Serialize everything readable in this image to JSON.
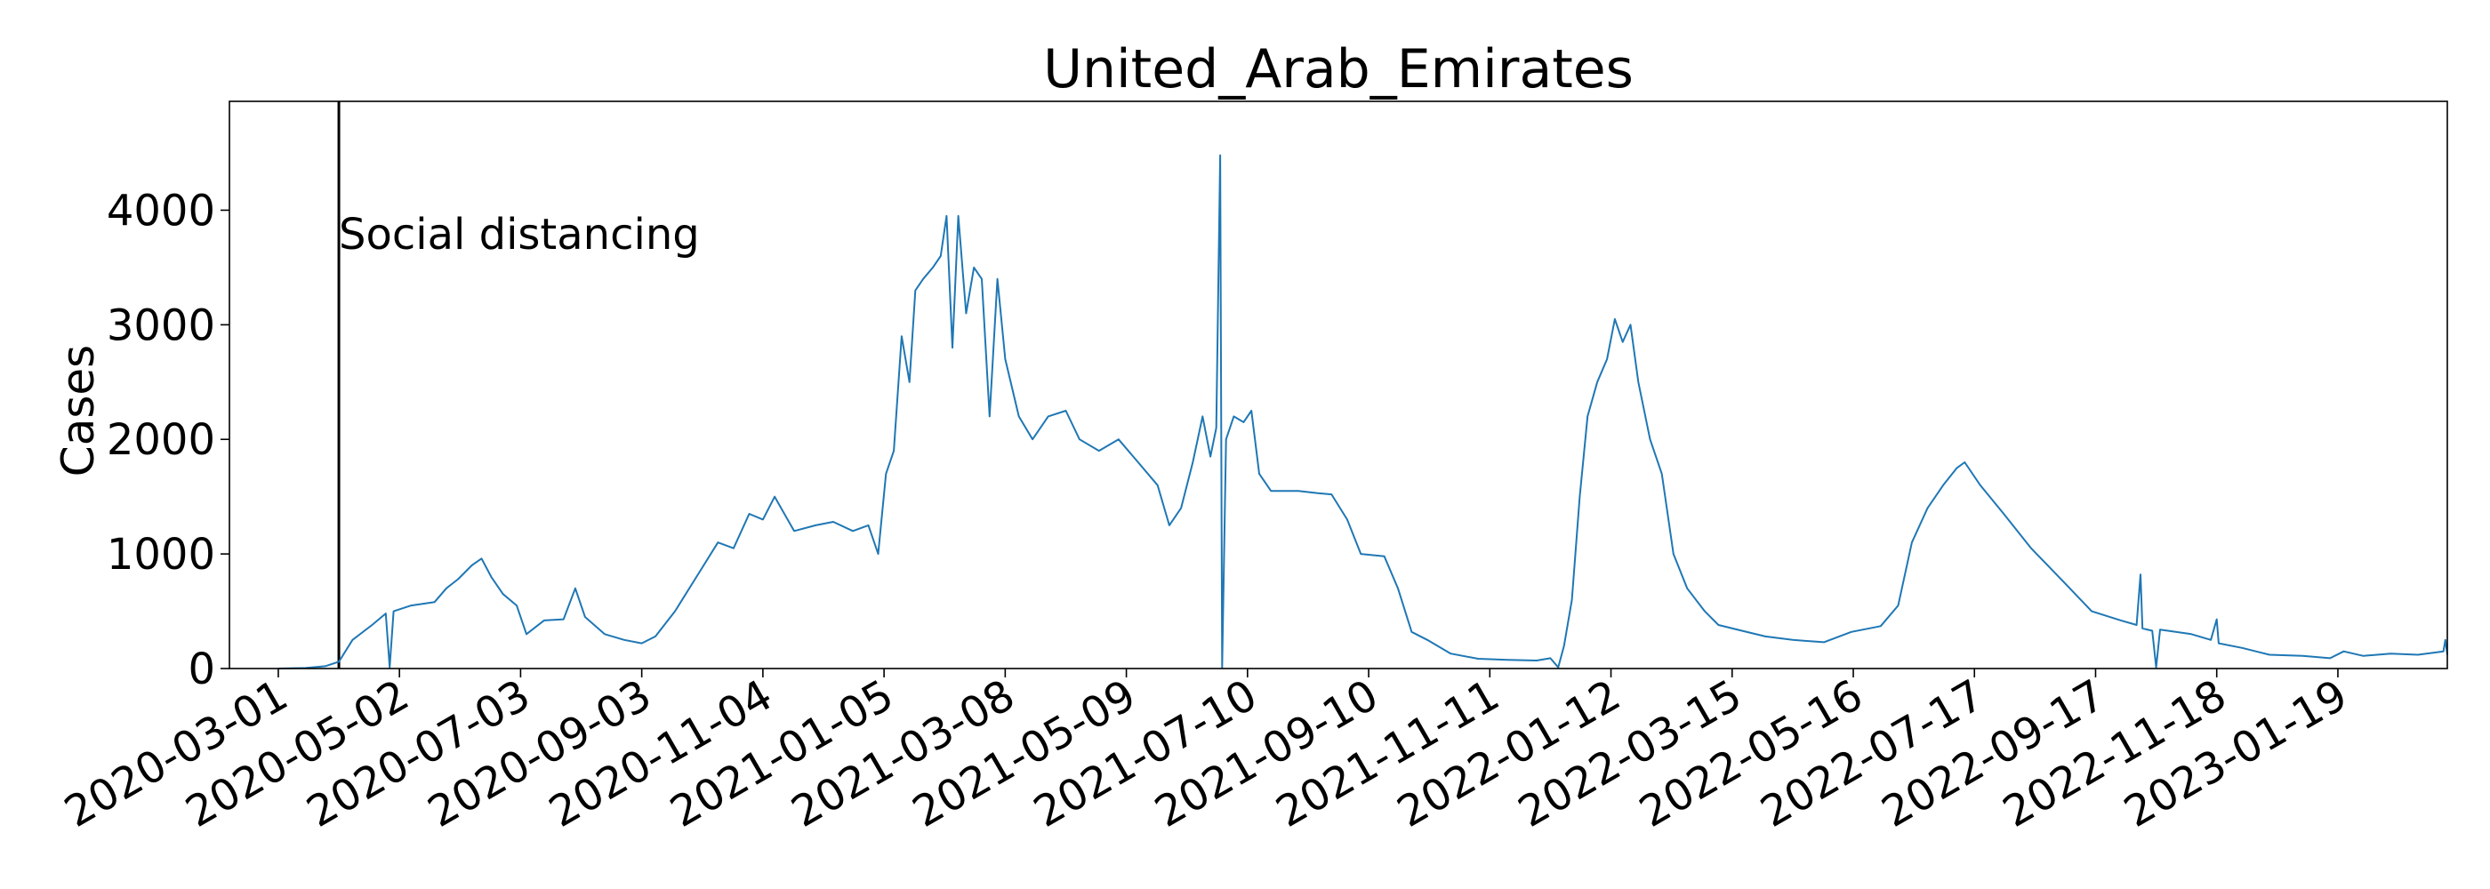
{
  "chart_data": {
    "type": "line",
    "title": "United_Arab_Emirates",
    "xlabel": "",
    "ylabel": "Cases",
    "ylim": [
      0,
      4950
    ],
    "xlim": [
      "2020-02-05",
      "2023-03-16"
    ],
    "grid": false,
    "legend": "none",
    "y_ticks": [
      0,
      1000,
      2000,
      3000,
      4000
    ],
    "x_ticks": [
      "2020-03-01",
      "2020-05-02",
      "2020-07-03",
      "2020-09-03",
      "2020-11-04",
      "2021-01-05",
      "2021-03-08",
      "2021-05-09",
      "2021-07-10",
      "2021-09-10",
      "2021-11-11",
      "2022-01-12",
      "2022-03-15",
      "2022-05-16",
      "2022-07-17",
      "2022-09-17",
      "2022-11-18",
      "2023-01-19"
    ],
    "annotations": [
      {
        "label": "Social distancing",
        "date": "2020-04-01"
      }
    ],
    "series": [
      {
        "color": "#1f77b4",
        "points": [
          [
            "2020-03-01",
            0
          ],
          [
            "2020-03-15",
            5
          ],
          [
            "2020-03-25",
            20
          ],
          [
            "2020-04-01",
            60
          ],
          [
            "2020-04-08",
            250
          ],
          [
            "2020-04-18",
            380
          ],
          [
            "2020-04-25",
            480
          ],
          [
            "2020-04-27",
            10
          ],
          [
            "2020-04-29",
            500
          ],
          [
            "2020-05-08",
            550
          ],
          [
            "2020-05-20",
            580
          ],
          [
            "2020-05-26",
            700
          ],
          [
            "2020-06-01",
            780
          ],
          [
            "2020-06-08",
            900
          ],
          [
            "2020-06-13",
            960
          ],
          [
            "2020-06-18",
            800
          ],
          [
            "2020-06-24",
            650
          ],
          [
            "2020-07-01",
            550
          ],
          [
            "2020-07-06",
            300
          ],
          [
            "2020-07-15",
            420
          ],
          [
            "2020-07-25",
            430
          ],
          [
            "2020-07-31",
            700
          ],
          [
            "2020-08-05",
            450
          ],
          [
            "2020-08-15",
            300
          ],
          [
            "2020-08-25",
            250
          ],
          [
            "2020-09-03",
            220
          ],
          [
            "2020-09-10",
            280
          ],
          [
            "2020-09-20",
            500
          ],
          [
            "2020-10-01",
            800
          ],
          [
            "2020-10-12",
            1100
          ],
          [
            "2020-10-20",
            1050
          ],
          [
            "2020-10-28",
            1350
          ],
          [
            "2020-11-04",
            1300
          ],
          [
            "2020-11-10",
            1500
          ],
          [
            "2020-11-20",
            1200
          ],
          [
            "2020-12-01",
            1250
          ],
          [
            "2020-12-10",
            1280
          ],
          [
            "2020-12-20",
            1200
          ],
          [
            "2020-12-28",
            1250
          ],
          [
            "2021-01-02",
            1000
          ],
          [
            "2021-01-06",
            1700
          ],
          [
            "2021-01-10",
            1900
          ],
          [
            "2021-01-14",
            2900
          ],
          [
            "2021-01-18",
            2500
          ],
          [
            "2021-01-21",
            3300
          ],
          [
            "2021-01-25",
            3400
          ],
          [
            "2021-01-30",
            3500
          ],
          [
            "2021-02-03",
            3600
          ],
          [
            "2021-02-06",
            3950
          ],
          [
            "2021-02-09",
            2800
          ],
          [
            "2021-02-12",
            3950
          ],
          [
            "2021-02-16",
            3100
          ],
          [
            "2021-02-20",
            3500
          ],
          [
            "2021-02-24",
            3400
          ],
          [
            "2021-02-28",
            2200
          ],
          [
            "2021-03-04",
            3400
          ],
          [
            "2021-03-08",
            2700
          ],
          [
            "2021-03-15",
            2200
          ],
          [
            "2021-03-22",
            2000
          ],
          [
            "2021-03-30",
            2200
          ],
          [
            "2021-04-08",
            2250
          ],
          [
            "2021-04-15",
            2000
          ],
          [
            "2021-04-25",
            1900
          ],
          [
            "2021-05-05",
            2000
          ],
          [
            "2021-05-15",
            1800
          ],
          [
            "2021-05-25",
            1600
          ],
          [
            "2021-05-31",
            1250
          ],
          [
            "2021-06-06",
            1400
          ],
          [
            "2021-06-12",
            1800
          ],
          [
            "2021-06-17",
            2200
          ],
          [
            "2021-06-21",
            1850
          ],
          [
            "2021-06-24",
            2100
          ],
          [
            "2021-06-26",
            4480
          ],
          [
            "2021-06-27",
            10
          ],
          [
            "2021-06-29",
            2000
          ],
          [
            "2021-07-03",
            2200
          ],
          [
            "2021-07-08",
            2150
          ],
          [
            "2021-07-12",
            2250
          ],
          [
            "2021-07-16",
            1700
          ],
          [
            "2021-07-22",
            1550
          ],
          [
            "2021-08-05",
            1550
          ],
          [
            "2021-08-15",
            1530
          ],
          [
            "2021-08-22",
            1520
          ],
          [
            "2021-08-30",
            1300
          ],
          [
            "2021-09-06",
            1000
          ],
          [
            "2021-09-18",
            980
          ],
          [
            "2021-09-25",
            700
          ],
          [
            "2021-10-02",
            320
          ],
          [
            "2021-10-10",
            250
          ],
          [
            "2021-10-22",
            130
          ],
          [
            "2021-11-05",
            85
          ],
          [
            "2021-11-20",
            75
          ],
          [
            "2021-12-05",
            70
          ],
          [
            "2021-12-12",
            90
          ],
          [
            "2021-12-16",
            10
          ],
          [
            "2021-12-19",
            200
          ],
          [
            "2021-12-23",
            600
          ],
          [
            "2021-12-27",
            1500
          ],
          [
            "2021-12-31",
            2200
          ],
          [
            "2022-01-05",
            2500
          ],
          [
            "2022-01-10",
            2700
          ],
          [
            "2022-01-14",
            3050
          ],
          [
            "2022-01-18",
            2850
          ],
          [
            "2022-01-22",
            3000
          ],
          [
            "2022-01-26",
            2500
          ],
          [
            "2022-02-01",
            2000
          ],
          [
            "2022-02-07",
            1700
          ],
          [
            "2022-02-13",
            1000
          ],
          [
            "2022-02-20",
            700
          ],
          [
            "2022-03-01",
            500
          ],
          [
            "2022-03-08",
            380
          ],
          [
            "2022-03-20",
            330
          ],
          [
            "2022-04-01",
            280
          ],
          [
            "2022-04-15",
            250
          ],
          [
            "2022-05-01",
            230
          ],
          [
            "2022-05-15",
            320
          ],
          [
            "2022-05-30",
            370
          ],
          [
            "2022-06-08",
            550
          ],
          [
            "2022-06-15",
            1100
          ],
          [
            "2022-06-23",
            1400
          ],
          [
            "2022-07-01",
            1600
          ],
          [
            "2022-07-08",
            1750
          ],
          [
            "2022-07-12",
            1800
          ],
          [
            "2022-07-20",
            1600
          ],
          [
            "2022-08-01",
            1350
          ],
          [
            "2022-08-15",
            1050
          ],
          [
            "2022-09-01",
            750
          ],
          [
            "2022-09-15",
            500
          ],
          [
            "2022-09-30",
            420
          ],
          [
            "2022-10-08",
            380
          ],
          [
            "2022-10-10",
            820
          ],
          [
            "2022-10-11",
            350
          ],
          [
            "2022-10-16",
            330
          ],
          [
            "2022-10-18",
            10
          ],
          [
            "2022-10-20",
            340
          ],
          [
            "2022-11-05",
            300
          ],
          [
            "2022-11-15",
            250
          ],
          [
            "2022-11-18",
            430
          ],
          [
            "2022-11-19",
            220
          ],
          [
            "2022-12-01",
            180
          ],
          [
            "2022-12-15",
            120
          ],
          [
            "2023-01-01",
            110
          ],
          [
            "2023-01-15",
            90
          ],
          [
            "2023-01-22",
            150
          ],
          [
            "2023-02-01",
            110
          ],
          [
            "2023-02-15",
            130
          ],
          [
            "2023-03-01",
            120
          ],
          [
            "2023-03-14",
            150
          ],
          [
            "2023-03-15",
            250
          ],
          [
            "2023-03-16",
            120
          ]
        ]
      }
    ]
  }
}
